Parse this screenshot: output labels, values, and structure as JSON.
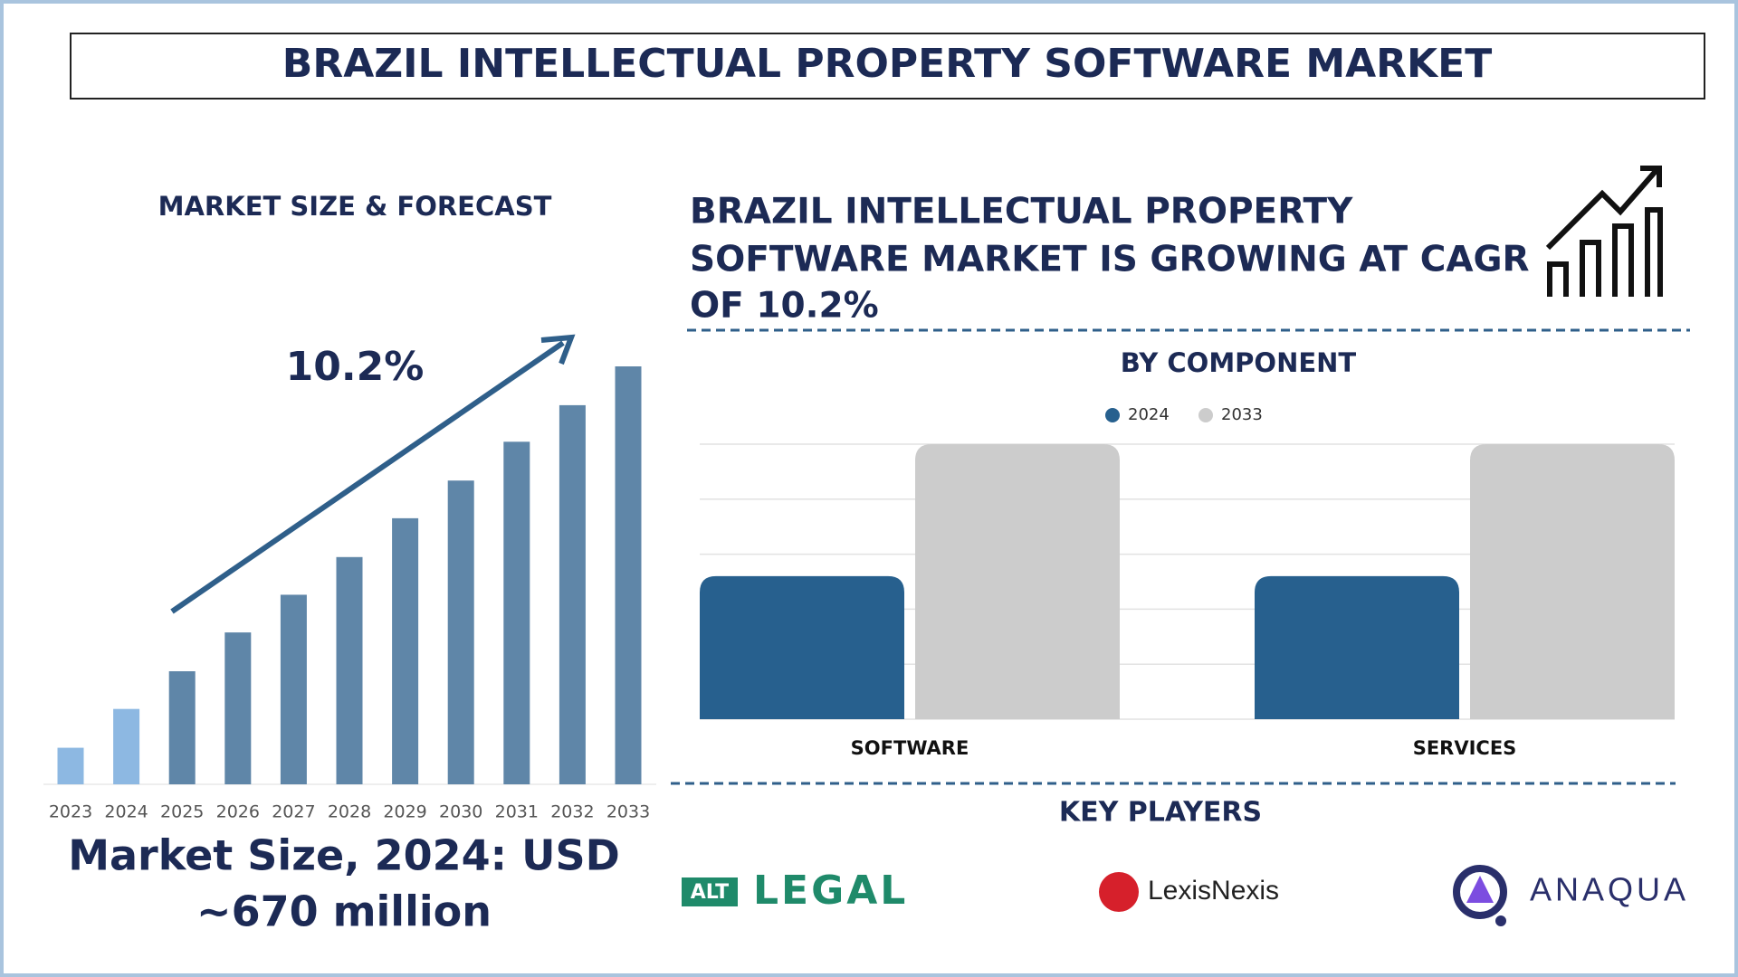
{
  "header": {
    "title": "BRAZIL INTELLECTUAL PROPERTY SOFTWARE MARKET"
  },
  "headline": [
    "BRAZIL INTELLECTUAL PROPERTY",
    "SOFTWARE MARKET IS GROWING AT CAGR",
    "OF 10.2%"
  ],
  "chart_data": [
    {
      "type": "bar",
      "title": "MARKET SIZE & FORECAST",
      "annotation": "10.2%",
      "categories": [
        "2023",
        "2024",
        "2025",
        "2026",
        "2027",
        "2028",
        "2029",
        "2030",
        "2031",
        "2032",
        "2033"
      ],
      "values": [
        325,
        670,
        1005,
        1350,
        1685,
        2020,
        2365,
        2700,
        3045,
        3370,
        3715
      ],
      "colors": [
        "#8db8e2",
        "#8db8e2",
        "#5f86a8",
        "#5f86a8",
        "#5f86a8",
        "#5f86a8",
        "#5f86a8",
        "#5f86a8",
        "#5f86a8",
        "#5f86a8",
        "#5f86a8"
      ],
      "footnote": [
        "Market Size, 2024: USD",
        "~670 million"
      ]
    },
    {
      "type": "grouped-bar",
      "title": "BY COMPONENT",
      "categories": [
        "SOFTWARE",
        "SERVICES"
      ],
      "series": [
        {
          "name": "2024",
          "color": "#27608e",
          "values": [
            2.6,
            2.6
          ]
        },
        {
          "name": "2033",
          "color": "#cccccc",
          "values": [
            5,
            5
          ]
        }
      ],
      "ylim": [
        0,
        5
      ],
      "yticks": [
        0,
        1,
        2,
        3,
        4,
        5
      ],
      "tick_labels": false,
      "grid": true,
      "legend": "top"
    }
  ],
  "key_players": {
    "title": "KEY PLAYERS",
    "players": [
      {
        "badge": "ALT",
        "name": "LEGAL"
      },
      {
        "name": "LexisNexis"
      },
      {
        "name": "ANAQUA"
      }
    ]
  }
}
